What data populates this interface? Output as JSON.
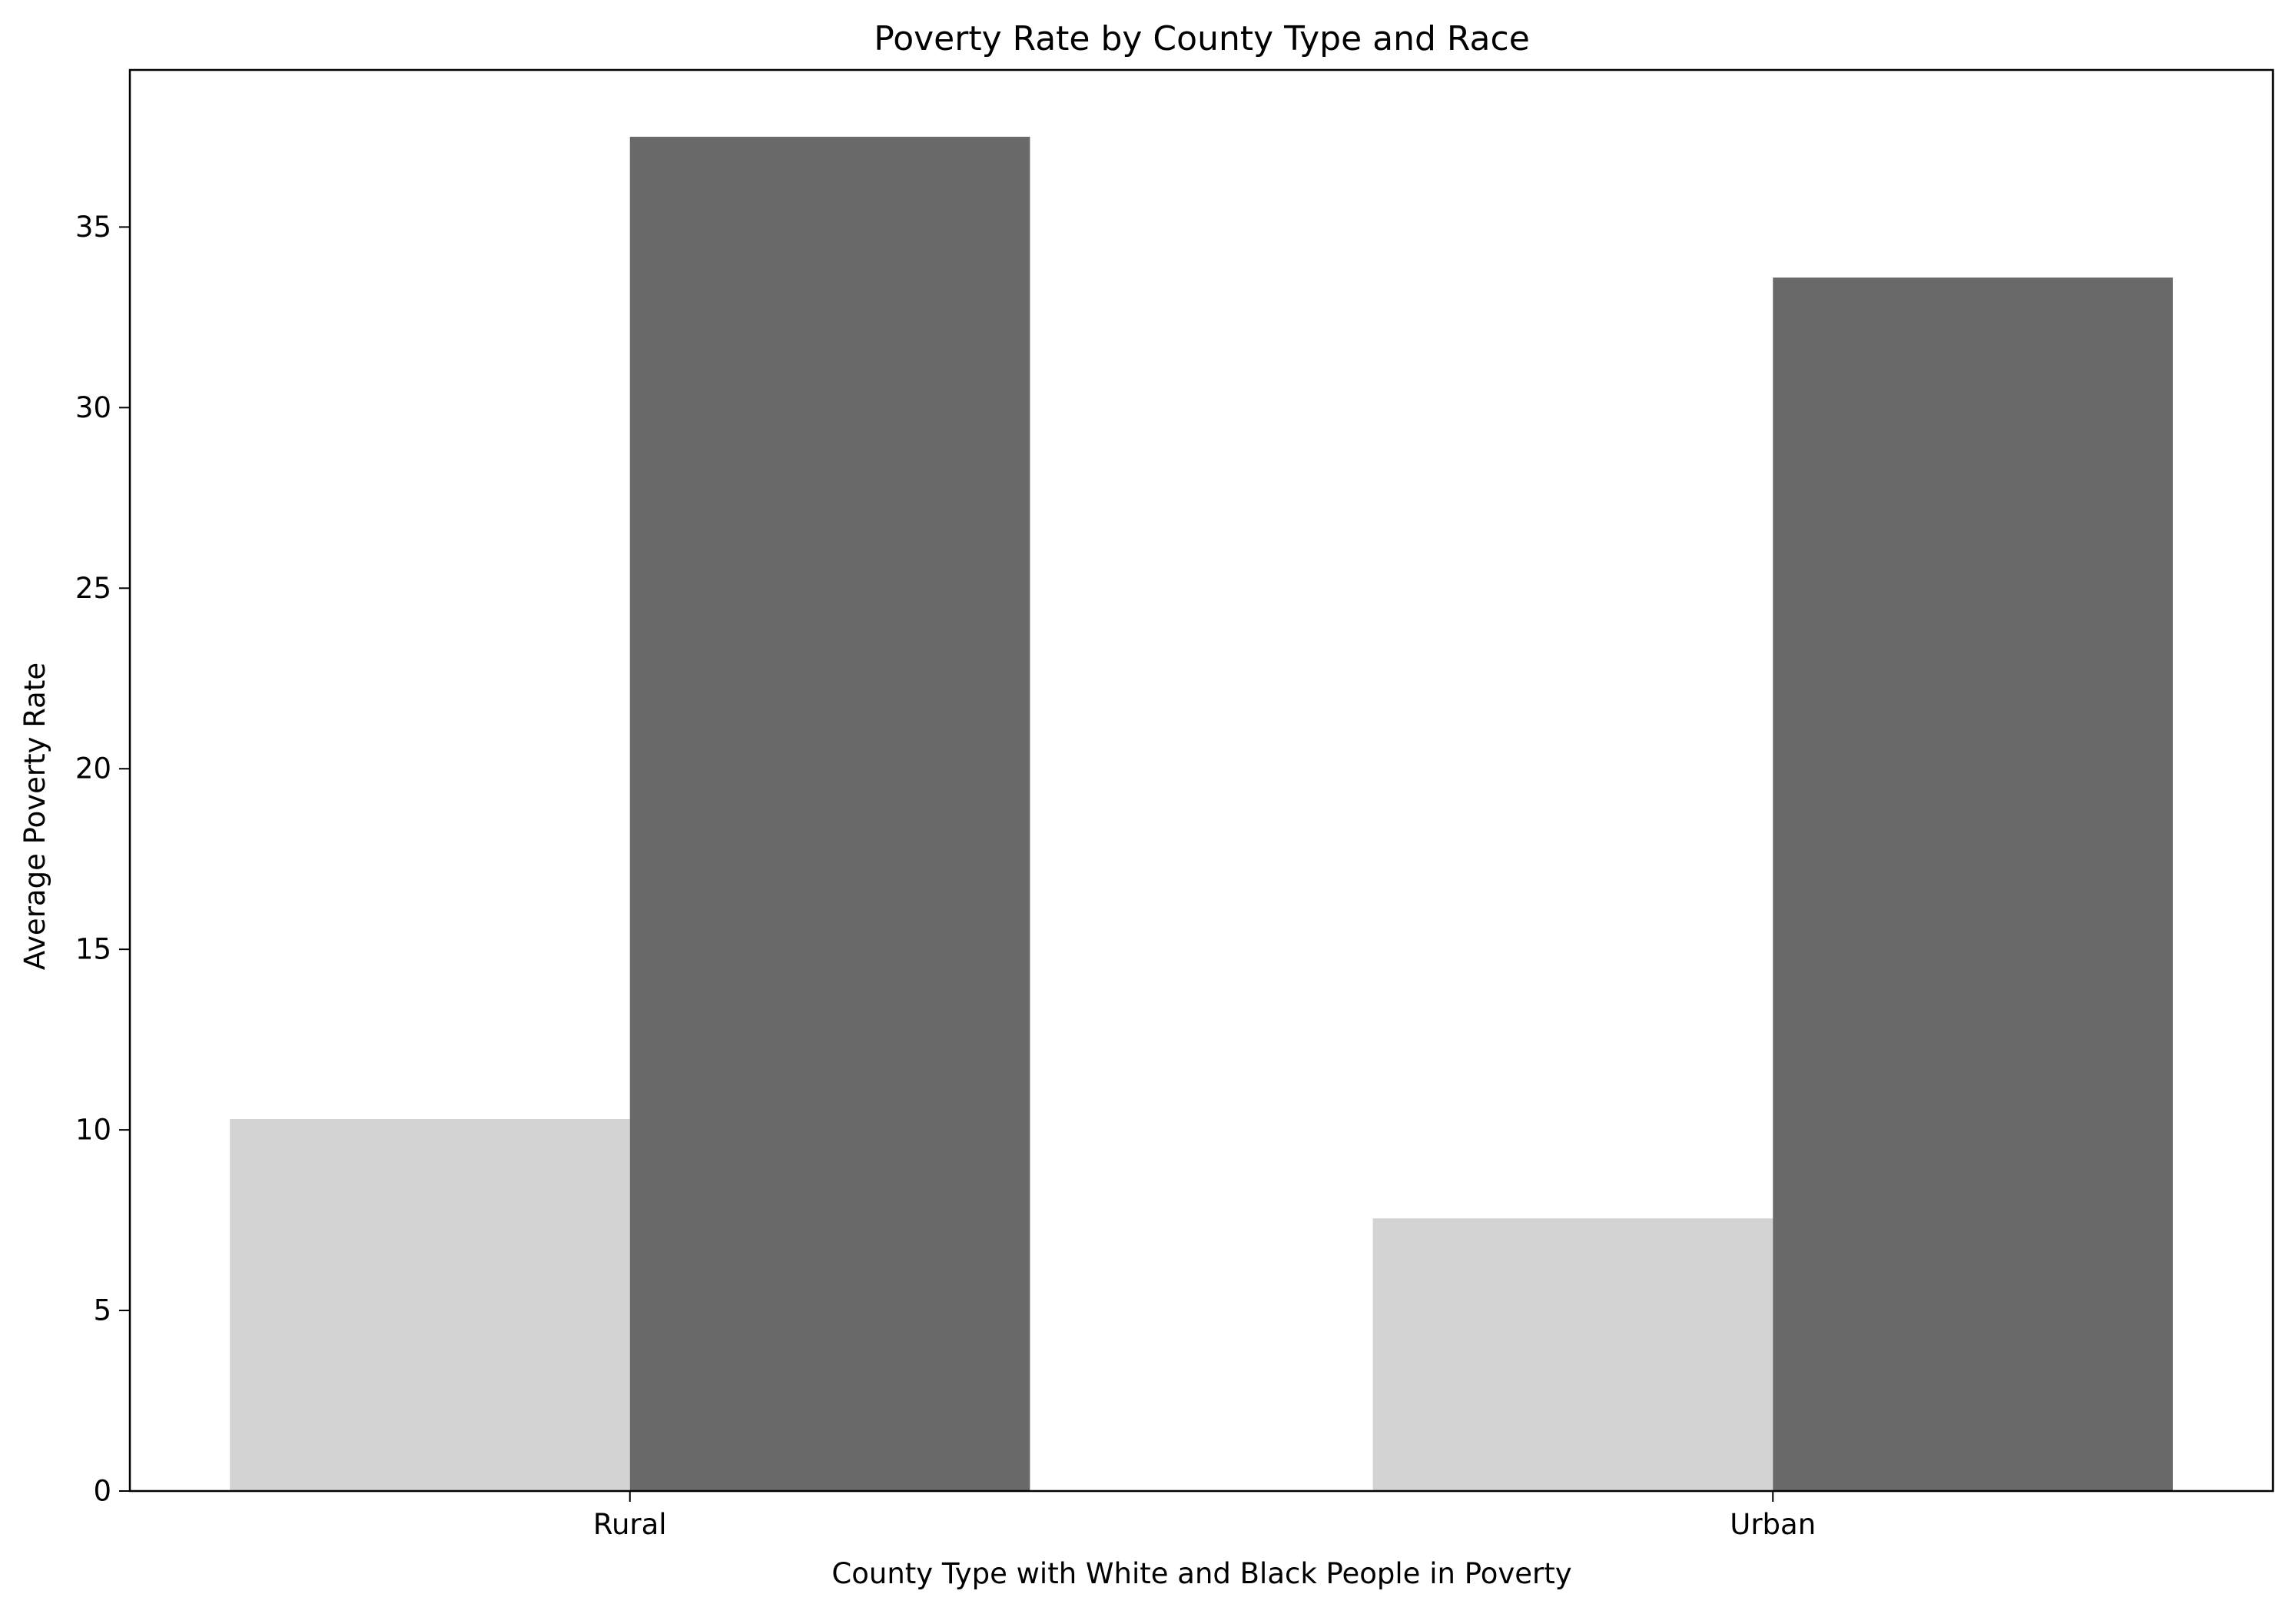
{
  "chart_data": {
    "type": "bar",
    "title": "Poverty Rate by County Type and Race",
    "xlabel": "County Type with White and Black People in Poverty",
    "ylabel": "Average Poverty Rate",
    "categories": [
      "Rural",
      "Urban"
    ],
    "series": [
      {
        "values": [
          10.3,
          7.55
        ],
        "color": "#d3d3d3"
      },
      {
        "values": [
          37.5,
          33.6
        ],
        "color": "#696969"
      }
    ],
    "ylim": [
      0,
      39.35
    ],
    "yticks": [
      0,
      5,
      10,
      15,
      20,
      25,
      30,
      35
    ],
    "grid": false,
    "legend": "none"
  },
  "colors": {
    "background": "#ffffff",
    "axes": "#000000"
  }
}
